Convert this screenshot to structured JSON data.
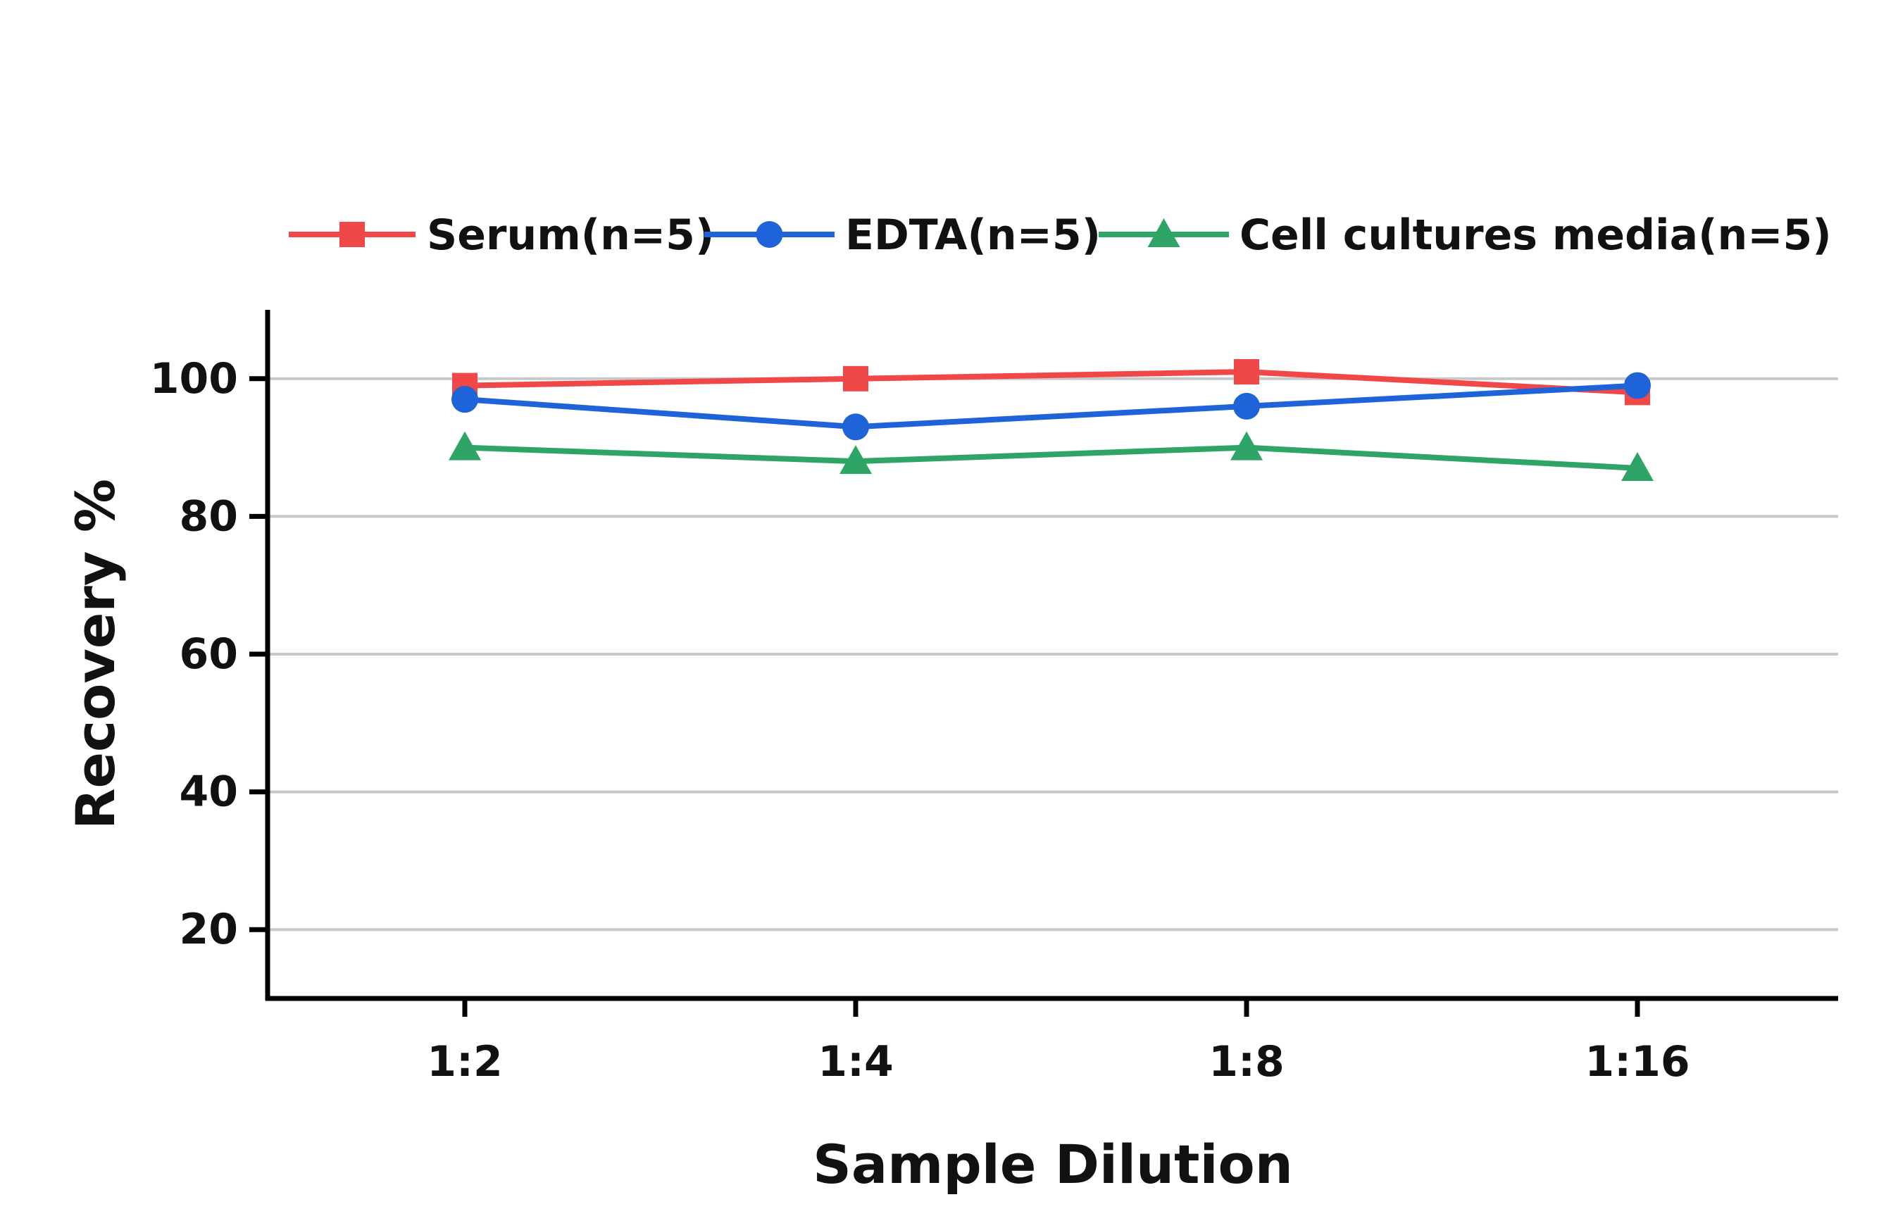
{
  "chart_data": {
    "type": "line",
    "categories": [
      "1:2",
      "1:4",
      "1:8",
      "1:16"
    ],
    "xlabel": "Sample Dilution",
    "ylabel": "Recovery %",
    "ylim": [
      10,
      110
    ],
    "yticks": [
      20,
      40,
      60,
      80,
      100
    ],
    "grid": "horizontal",
    "legend_position": "top",
    "series": [
      {
        "name": "Serum(n=5)",
        "values": [
          99,
          100,
          101,
          98
        ],
        "color": "#f04848",
        "marker": "square"
      },
      {
        "name": "EDTA(n=5)",
        "values": [
          97,
          93,
          96,
          99
        ],
        "color": "#1f63d8",
        "marker": "circle"
      },
      {
        "name": "Cell cultures media(n=5)",
        "values": [
          90,
          88,
          90,
          87
        ],
        "color": "#2ea566",
        "marker": "triangle"
      }
    ]
  }
}
